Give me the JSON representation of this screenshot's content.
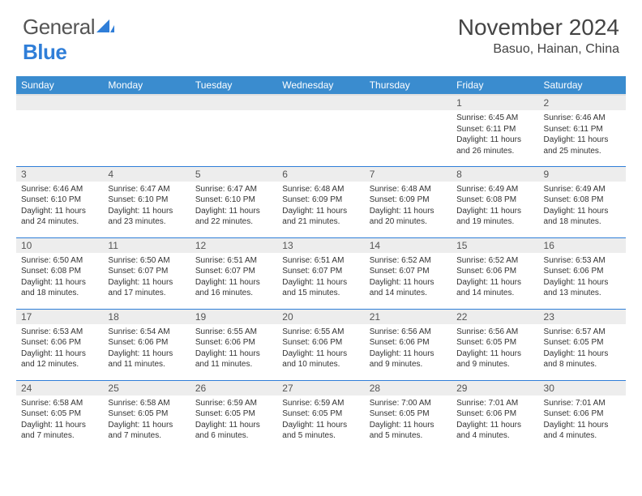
{
  "brand": {
    "part1": "General",
    "part2": "Blue"
  },
  "title": "November 2024",
  "location": "Basuo, Hainan, China",
  "colors": {
    "header_bg": "#3a8ccf",
    "row_divider": "#2f7ed8",
    "daynum_bg": "#ededed",
    "text": "#333333",
    "brand_blue": "#2f7ed8"
  },
  "typography": {
    "title_fontsize": 28,
    "location_fontsize": 16,
    "th_fontsize": 12,
    "daynum_fontsize": 12,
    "dayinfo_fontsize": 10
  },
  "days_of_week": [
    "Sunday",
    "Monday",
    "Tuesday",
    "Wednesday",
    "Thursday",
    "Friday",
    "Saturday"
  ],
  "weeks": [
    [
      null,
      null,
      null,
      null,
      null,
      {
        "n": "1",
        "sunrise": "6:45 AM",
        "sunset": "6:11 PM",
        "daylight": "11 hours and 26 minutes."
      },
      {
        "n": "2",
        "sunrise": "6:46 AM",
        "sunset": "6:11 PM",
        "daylight": "11 hours and 25 minutes."
      }
    ],
    [
      {
        "n": "3",
        "sunrise": "6:46 AM",
        "sunset": "6:10 PM",
        "daylight": "11 hours and 24 minutes."
      },
      {
        "n": "4",
        "sunrise": "6:47 AM",
        "sunset": "6:10 PM",
        "daylight": "11 hours and 23 minutes."
      },
      {
        "n": "5",
        "sunrise": "6:47 AM",
        "sunset": "6:10 PM",
        "daylight": "11 hours and 22 minutes."
      },
      {
        "n": "6",
        "sunrise": "6:48 AM",
        "sunset": "6:09 PM",
        "daylight": "11 hours and 21 minutes."
      },
      {
        "n": "7",
        "sunrise": "6:48 AM",
        "sunset": "6:09 PM",
        "daylight": "11 hours and 20 minutes."
      },
      {
        "n": "8",
        "sunrise": "6:49 AM",
        "sunset": "6:08 PM",
        "daylight": "11 hours and 19 minutes."
      },
      {
        "n": "9",
        "sunrise": "6:49 AM",
        "sunset": "6:08 PM",
        "daylight": "11 hours and 18 minutes."
      }
    ],
    [
      {
        "n": "10",
        "sunrise": "6:50 AM",
        "sunset": "6:08 PM",
        "daylight": "11 hours and 18 minutes."
      },
      {
        "n": "11",
        "sunrise": "6:50 AM",
        "sunset": "6:07 PM",
        "daylight": "11 hours and 17 minutes."
      },
      {
        "n": "12",
        "sunrise": "6:51 AM",
        "sunset": "6:07 PM",
        "daylight": "11 hours and 16 minutes."
      },
      {
        "n": "13",
        "sunrise": "6:51 AM",
        "sunset": "6:07 PM",
        "daylight": "11 hours and 15 minutes."
      },
      {
        "n": "14",
        "sunrise": "6:52 AM",
        "sunset": "6:07 PM",
        "daylight": "11 hours and 14 minutes."
      },
      {
        "n": "15",
        "sunrise": "6:52 AM",
        "sunset": "6:06 PM",
        "daylight": "11 hours and 14 minutes."
      },
      {
        "n": "16",
        "sunrise": "6:53 AM",
        "sunset": "6:06 PM",
        "daylight": "11 hours and 13 minutes."
      }
    ],
    [
      {
        "n": "17",
        "sunrise": "6:53 AM",
        "sunset": "6:06 PM",
        "daylight": "11 hours and 12 minutes."
      },
      {
        "n": "18",
        "sunrise": "6:54 AM",
        "sunset": "6:06 PM",
        "daylight": "11 hours and 11 minutes."
      },
      {
        "n": "19",
        "sunrise": "6:55 AM",
        "sunset": "6:06 PM",
        "daylight": "11 hours and 11 minutes."
      },
      {
        "n": "20",
        "sunrise": "6:55 AM",
        "sunset": "6:06 PM",
        "daylight": "11 hours and 10 minutes."
      },
      {
        "n": "21",
        "sunrise": "6:56 AM",
        "sunset": "6:06 PM",
        "daylight": "11 hours and 9 minutes."
      },
      {
        "n": "22",
        "sunrise": "6:56 AM",
        "sunset": "6:05 PM",
        "daylight": "11 hours and 9 minutes."
      },
      {
        "n": "23",
        "sunrise": "6:57 AM",
        "sunset": "6:05 PM",
        "daylight": "11 hours and 8 minutes."
      }
    ],
    [
      {
        "n": "24",
        "sunrise": "6:58 AM",
        "sunset": "6:05 PM",
        "daylight": "11 hours and 7 minutes."
      },
      {
        "n": "25",
        "sunrise": "6:58 AM",
        "sunset": "6:05 PM",
        "daylight": "11 hours and 7 minutes."
      },
      {
        "n": "26",
        "sunrise": "6:59 AM",
        "sunset": "6:05 PM",
        "daylight": "11 hours and 6 minutes."
      },
      {
        "n": "27",
        "sunrise": "6:59 AM",
        "sunset": "6:05 PM",
        "daylight": "11 hours and 5 minutes."
      },
      {
        "n": "28",
        "sunrise": "7:00 AM",
        "sunset": "6:05 PM",
        "daylight": "11 hours and 5 minutes."
      },
      {
        "n": "29",
        "sunrise": "7:01 AM",
        "sunset": "6:06 PM",
        "daylight": "11 hours and 4 minutes."
      },
      {
        "n": "30",
        "sunrise": "7:01 AM",
        "sunset": "6:06 PM",
        "daylight": "11 hours and 4 minutes."
      }
    ]
  ],
  "labels": {
    "sunrise": "Sunrise:",
    "sunset": "Sunset:",
    "daylight": "Daylight:"
  }
}
